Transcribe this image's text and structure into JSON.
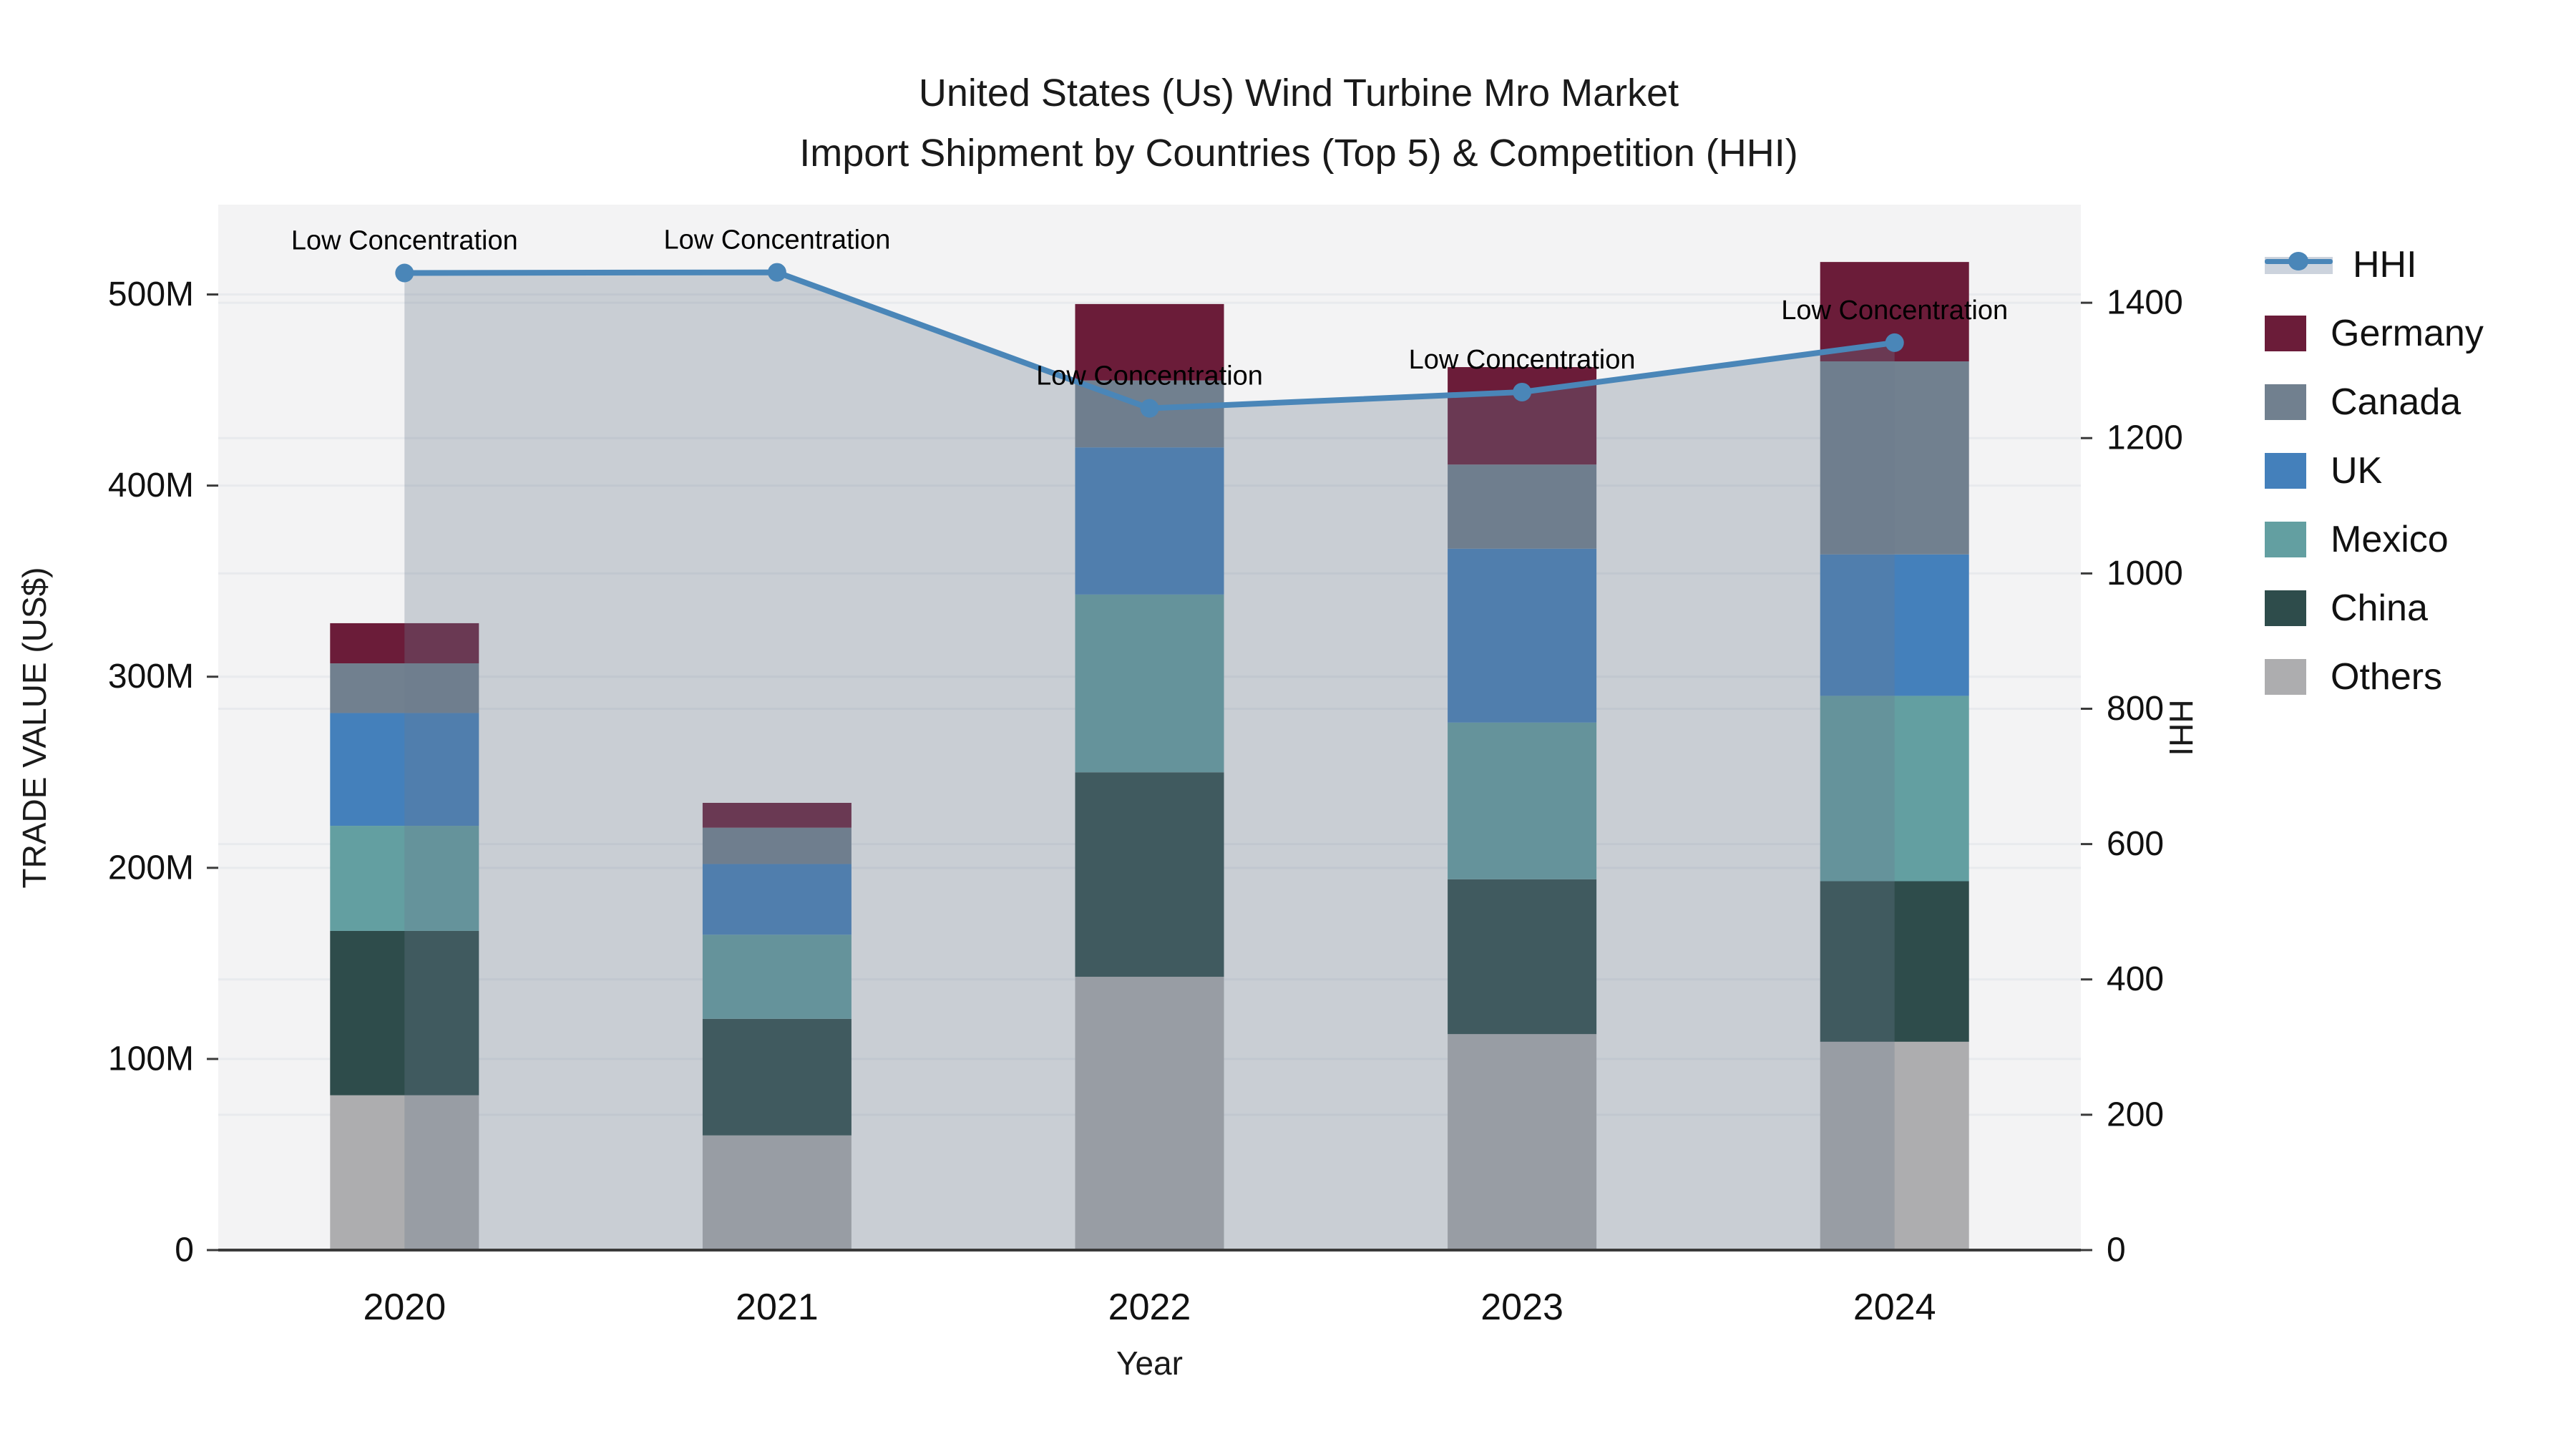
{
  "chart_data": {
    "type": "bar",
    "subtype": "stacked-bars-with-line-overlay",
    "title_line1": "United States (Us) Wind Turbine Mro Market",
    "title_line2": "Import Shipment by Countries (Top 5) & Competition (HHI)",
    "xlabel": "Year",
    "ylabel_left": "TRADE VALUE (US$)",
    "ylabel_right": "HHI",
    "categories": [
      "2020",
      "2021",
      "2022",
      "2023",
      "2024"
    ],
    "unit": "US$ millions (read from left axis)",
    "stack_order_bottom_to_top": [
      "Others",
      "China",
      "Mexico",
      "UK",
      "Canada",
      "Germany"
    ],
    "series": [
      {
        "name": "Germany",
        "color": "#6b1c39",
        "values": [
          21,
          13,
          40,
          51,
          52
        ]
      },
      {
        "name": "Canada",
        "color": "#71808f",
        "values": [
          26,
          19,
          35,
          44,
          101
        ]
      },
      {
        "name": "UK",
        "color": "#4480bb",
        "values": [
          59,
          37,
          77,
          91,
          74
        ]
      },
      {
        "name": "Mexico",
        "color": "#639fa1",
        "values": [
          55,
          44,
          93,
          82,
          97
        ]
      },
      {
        "name": "China",
        "color": "#2e4c4b",
        "values": [
          86,
          61,
          107,
          81,
          84
        ]
      },
      {
        "name": "Others",
        "color": "#adadaf",
        "values": [
          81,
          60,
          143,
          113,
          109
        ]
      }
    ],
    "line_series": {
      "name": "HHI",
      "color": "#4a86b8",
      "area_color": "rgba(106,122,143,0.31)",
      "values": [
        1444,
        1445,
        1244,
        1268,
        1341
      ]
    },
    "annotations": [
      {
        "category_index": 0,
        "text": "Low Concentration"
      },
      {
        "category_index": 1,
        "text": "Low Concentration"
      },
      {
        "category_index": 2,
        "text": "Low Concentration"
      },
      {
        "category_index": 3,
        "text": "Low Concentration"
      },
      {
        "category_index": 4,
        "text": "Low Concentration"
      }
    ],
    "left_ticks": [
      {
        "value": 0,
        "label": "0"
      },
      {
        "value": 100,
        "label": "100M"
      },
      {
        "value": 200,
        "label": "200M"
      },
      {
        "value": 300,
        "label": "300M"
      },
      {
        "value": 400,
        "label": "400M"
      },
      {
        "value": 500,
        "label": "500M"
      }
    ],
    "right_ticks": [
      {
        "value": 0,
        "label": "0"
      },
      {
        "value": 200,
        "label": "200"
      },
      {
        "value": 400,
        "label": "400"
      },
      {
        "value": 600,
        "label": "600"
      },
      {
        "value": 800,
        "label": "800"
      },
      {
        "value": 1000,
        "label": "1000"
      },
      {
        "value": 1200,
        "label": "1200"
      },
      {
        "value": 1400,
        "label": "1400"
      }
    ],
    "ylim_left": [
      0,
      547
    ],
    "ylim_right": [
      0,
      1545
    ],
    "legend_entries": [
      "HHI",
      "Germany",
      "Canada",
      "UK",
      "Mexico",
      "China",
      "Others"
    ],
    "plot_bg": "#f3f3f4",
    "grid_color": "#e8eaed",
    "axis_line_color": "#3a3a3a",
    "text_color": "#111111"
  }
}
